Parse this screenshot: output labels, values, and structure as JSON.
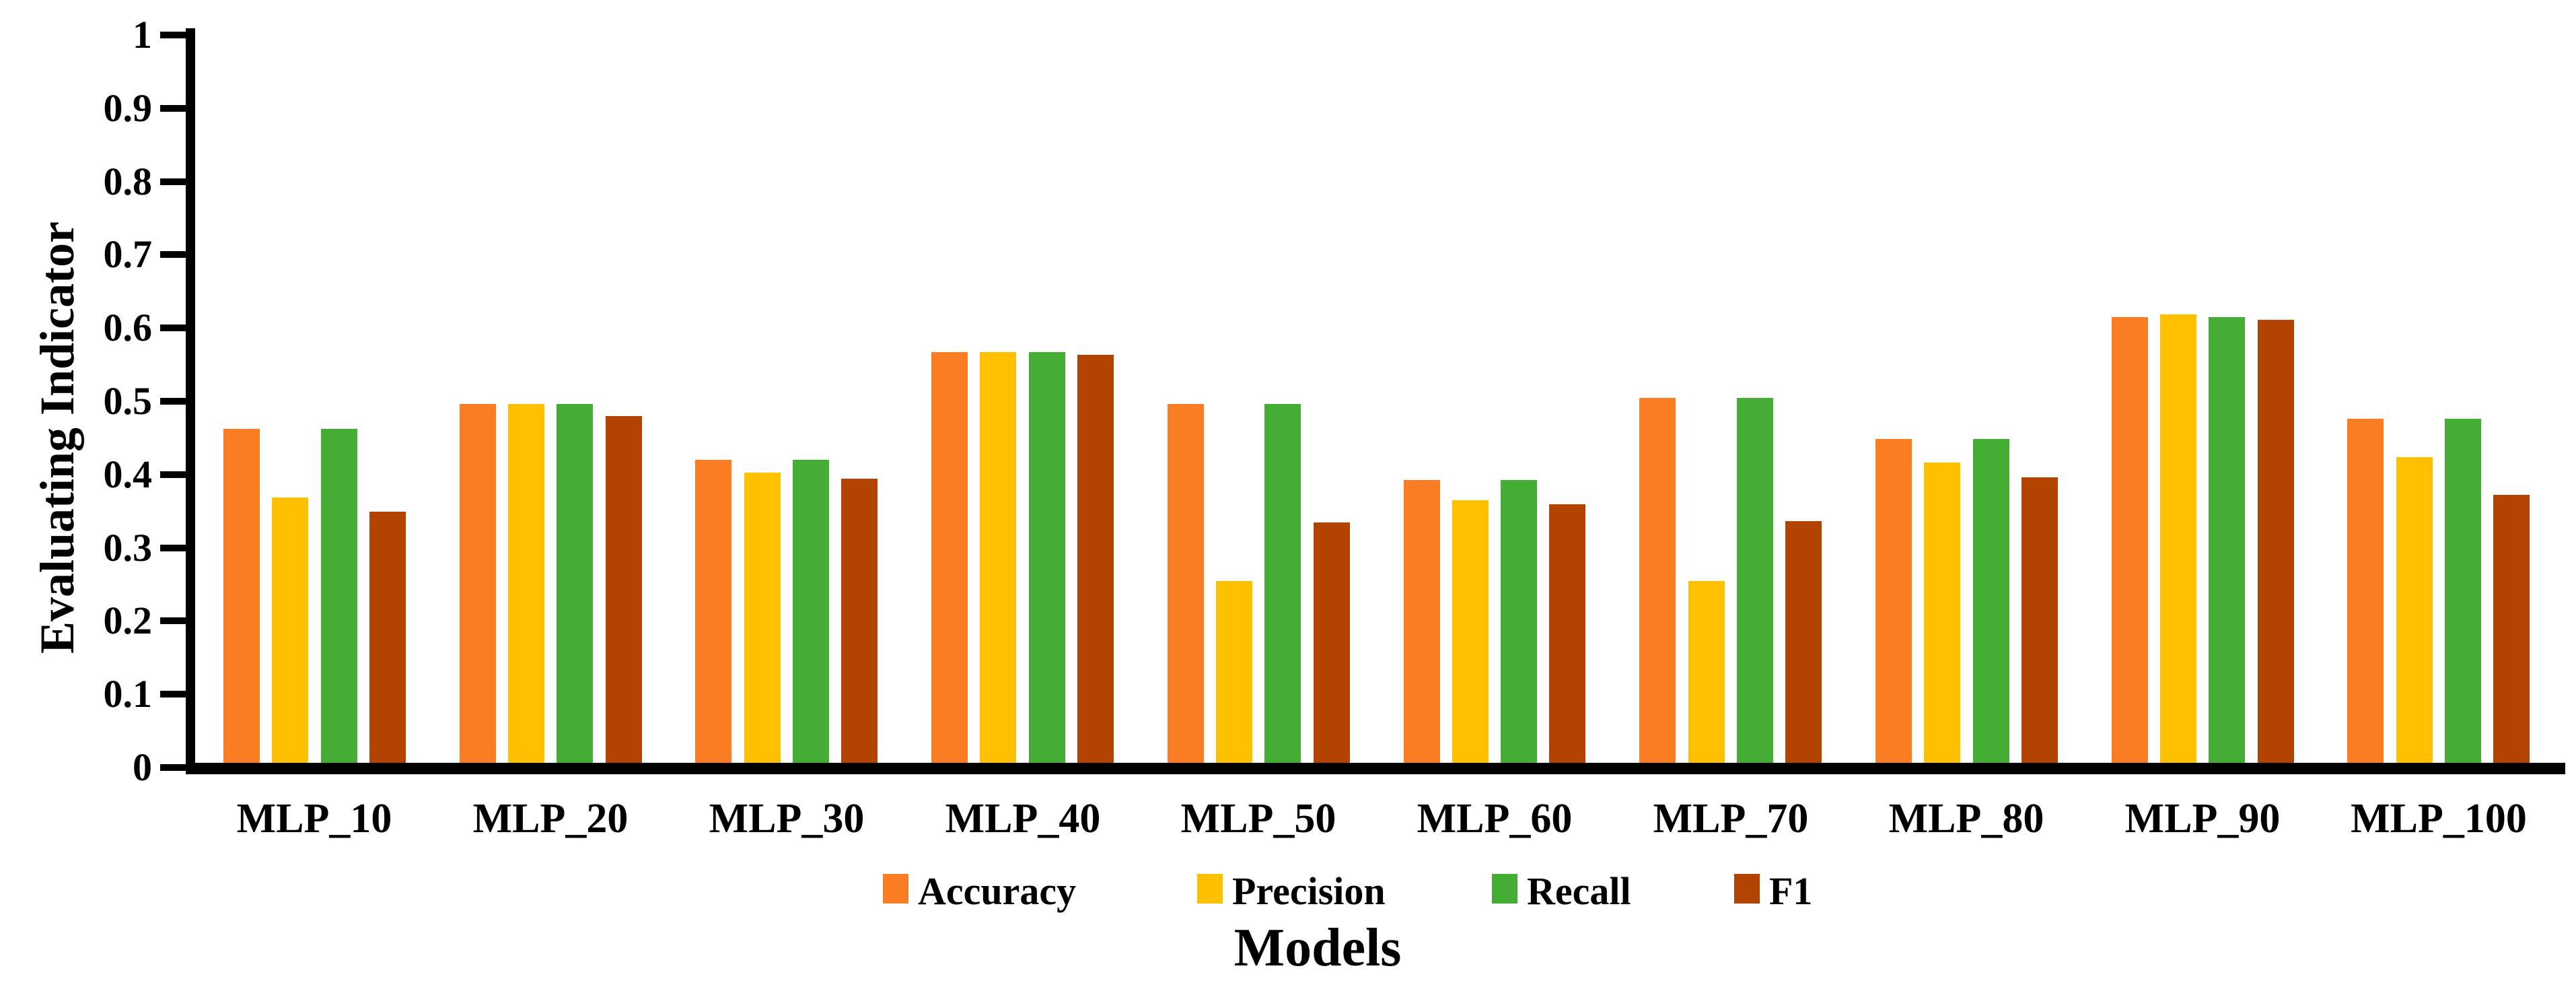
{
  "figure": {
    "background": "#ffffff",
    "axis_color": "#000000"
  },
  "chart_data": {
    "type": "bar",
    "title": "",
    "xlabel": "Models",
    "ylabel": "Evaluating Indicator",
    "ylim": [
      0,
      1
    ],
    "ytick_step": 0.1,
    "ytick_labels": [
      "0",
      "0.1",
      "0.2",
      "0.3",
      "0.4",
      "0.5",
      "0.6",
      "0.7",
      "0.8",
      "0.9",
      "1"
    ],
    "grid": false,
    "legend_position": "bottom",
    "categories": [
      "MLP_10",
      "MLP_20",
      "MLP_30",
      "MLP_40",
      "MLP_50",
      "MLP_60",
      "MLP_70",
      "MLP_80",
      "MLP_90",
      "MLP_100"
    ],
    "series": [
      {
        "name": "Accuracy",
        "color": "#FA7D23",
        "values": [
          0.456,
          0.49,
          0.414,
          0.561,
          0.49,
          0.386,
          0.498,
          0.442,
          0.608,
          0.47
        ]
      },
      {
        "name": "Precision",
        "color": "#FFC000",
        "values": [
          0.362,
          0.49,
          0.396,
          0.561,
          0.248,
          0.358,
          0.248,
          0.41,
          0.612,
          0.417
        ]
      },
      {
        "name": "Recall",
        "color": "#43AD34",
        "values": [
          0.456,
          0.49,
          0.414,
          0.561,
          0.49,
          0.386,
          0.498,
          0.442,
          0.608,
          0.47
        ]
      },
      {
        "name": "F1",
        "color": "#B34300",
        "values": [
          0.343,
          0.473,
          0.388,
          0.557,
          0.328,
          0.353,
          0.33,
          0.39,
          0.605,
          0.366
        ]
      }
    ]
  }
}
